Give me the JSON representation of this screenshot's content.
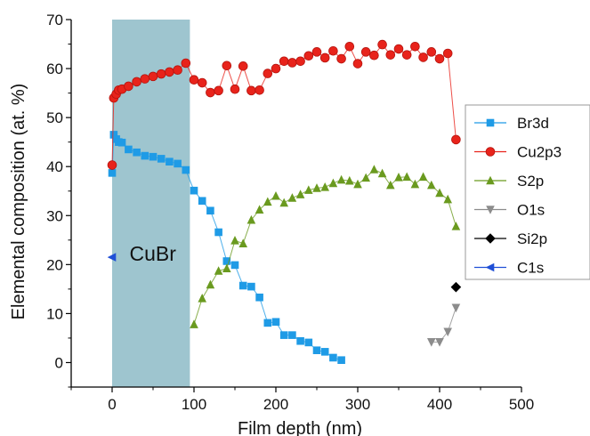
{
  "chart_data": {
    "type": "scatter",
    "xlabel": "Film depth (nm)",
    "ylabel": "Elemental composition (at. %)",
    "xlim": [
      -50,
      500
    ],
    "ylim": [
      -5,
      70
    ],
    "xticks": [
      0,
      100,
      200,
      300,
      400,
      500
    ],
    "yticks": [
      0,
      10,
      20,
      30,
      40,
      50,
      60,
      70
    ],
    "xtick_labels": [
      "0",
      "100",
      "200",
      "300",
      "400",
      "500"
    ],
    "ytick_labels": [
      "0",
      "10",
      "20",
      "30",
      "40",
      "50",
      "60",
      "70"
    ],
    "grid": false,
    "legend": "right",
    "shaded_region": {
      "x": [
        0,
        95
      ],
      "label": "CuBr",
      "color": "#9ec5cf"
    },
    "series": [
      {
        "name": "Br3d",
        "color": "#1f9be6",
        "marker": "square",
        "line": true,
        "x": [
          0,
          2,
          5,
          8,
          12,
          20,
          30,
          40,
          50,
          60,
          70,
          80,
          90,
          100,
          110,
          120,
          130,
          140,
          150,
          160,
          170,
          180,
          190,
          200,
          210,
          220,
          230,
          240,
          250,
          260,
          270,
          280
        ],
        "y": [
          38.7,
          46.5,
          45.6,
          45,
          44.9,
          43.5,
          42.9,
          42.2,
          42,
          41.6,
          41,
          40.6,
          39.3,
          35.1,
          33,
          31,
          26.6,
          20.7,
          19.9,
          15.7,
          15.5,
          13.3,
          8.1,
          8.3,
          5.6,
          5.6,
          4.4,
          4.1,
          2.5,
          2.2,
          1,
          0.5
        ]
      },
      {
        "name": "Cu2p3",
        "color": "#e8231b",
        "marker": "circle",
        "line": true,
        "x": [
          0,
          2,
          5,
          8,
          12,
          20,
          30,
          40,
          50,
          60,
          70,
          80,
          90,
          100,
          110,
          120,
          130,
          140,
          150,
          160,
          170,
          180,
          190,
          200,
          210,
          220,
          230,
          240,
          250,
          260,
          270,
          280,
          290,
          300,
          310,
          320,
          330,
          340,
          350,
          360,
          370,
          380,
          390,
          400,
          410,
          420
        ],
        "y": [
          40.3,
          54,
          54.8,
          55.6,
          55.8,
          56.4,
          57.3,
          57.9,
          58.4,
          58.9,
          59.3,
          59.7,
          61.1,
          57.7,
          57.1,
          55.1,
          55.5,
          60.6,
          55.8,
          60.5,
          55.5,
          55.6,
          59,
          60,
          61.5,
          61.2,
          61.5,
          62.6,
          63.4,
          62.2,
          63.6,
          62,
          64.5,
          61,
          63.4,
          62.7,
          64.9,
          62.8,
          64,
          62.8,
          64.5,
          62.3,
          63.4,
          62,
          63.1,
          45.5
        ]
      },
      {
        "name": "S2p",
        "color": "#6a9a1f",
        "marker": "triangle-up",
        "line": true,
        "x": [
          100,
          110,
          120,
          130,
          140,
          150,
          160,
          170,
          180,
          190,
          200,
          210,
          220,
          230,
          240,
          250,
          260,
          270,
          280,
          290,
          300,
          310,
          320,
          330,
          340,
          350,
          360,
          370,
          380,
          390,
          400,
          410,
          420
        ],
        "y": [
          7.8,
          13.1,
          15.9,
          18.7,
          19.2,
          24.9,
          24.3,
          29.1,
          31.2,
          32.8,
          34,
          32.6,
          33.6,
          34.3,
          35.2,
          35.6,
          35.8,
          36.6,
          37.3,
          37.1,
          36.4,
          37.7,
          39.4,
          38.6,
          36.2,
          37.8,
          37.9,
          36.4,
          37.9,
          36.2,
          34.6,
          33.3,
          27.8
        ]
      },
      {
        "name": "O1s",
        "color": "#8c8c8c",
        "marker": "triangle-down",
        "line": true,
        "x": [
          390,
          400,
          410,
          420
        ],
        "y": [
          4.2,
          4.2,
          6.3,
          11.2
        ]
      },
      {
        "name": "Si2p",
        "color": "#000000",
        "marker": "diamond",
        "line": false,
        "x": [
          420
        ],
        "y": [
          15.4
        ]
      },
      {
        "name": "C1s",
        "color": "#1f4fd6",
        "marker": "triangle-left",
        "line": false,
        "x": [
          0
        ],
        "y": [
          21.5
        ]
      }
    ]
  }
}
